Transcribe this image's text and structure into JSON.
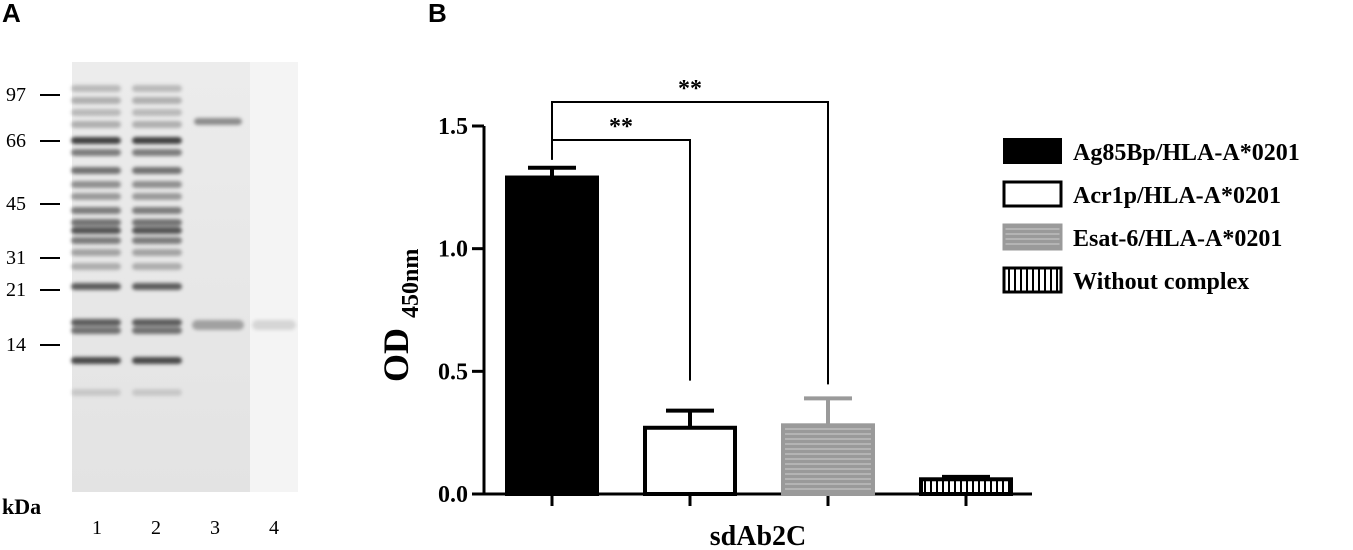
{
  "panel_a": {
    "letter": "A",
    "unit_label": "kDa",
    "markers": [
      "97",
      "66",
      "45",
      "31",
      "21",
      "14"
    ],
    "lanes": [
      "1",
      "2",
      "3",
      "4"
    ]
  },
  "panel_b": {
    "letter": "B"
  },
  "chart_data": {
    "type": "bar",
    "categories": [
      "Ag85Bp/HLA-A*0201",
      "Acr1p/HLA-A*0201",
      "Esat-6/HLA-A*0201",
      "Without complex"
    ],
    "values": [
      1.29,
      0.27,
      0.28,
      0.06
    ],
    "errors": [
      0.04,
      0.07,
      0.11,
      0.01
    ],
    "xlabel": "sdAb2C",
    "ylabel_main": "OD",
    "ylabel_sub": "450nm",
    "ylim": [
      0,
      1.5
    ],
    "yticks": [
      "0.0",
      "0.5",
      "1.0",
      "1.5"
    ],
    "legend_position": "right",
    "colors": [
      "#000000",
      "#ffffff",
      "#9a9a9a",
      "#ffffff"
    ],
    "significance": [
      {
        "from": 0,
        "to": 1,
        "label": "**"
      },
      {
        "from": 0,
        "to": 2,
        "label": "**"
      }
    ]
  }
}
